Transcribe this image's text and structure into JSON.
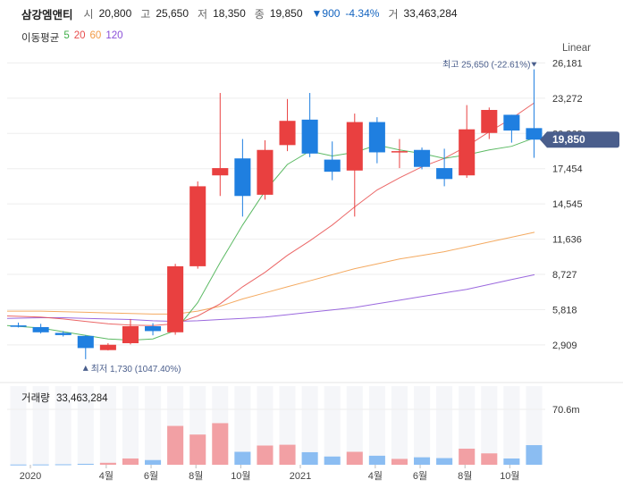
{
  "header": {
    "name": "삼강엠앤티",
    "open_label": "시",
    "open": "20,800",
    "high_label": "고",
    "high": "25,650",
    "low_label": "저",
    "low": "18,350",
    "close_label": "종",
    "close": "19,850",
    "change": "▼900",
    "change_pct": "-4.34%",
    "volume_label": "거",
    "volume": "33,463,284"
  },
  "moving_average": {
    "label": "이동평균",
    "periods": [
      {
        "period": "5",
        "color": "#3fae49"
      },
      {
        "period": "20",
        "color": "#e84c4c"
      },
      {
        "period": "60",
        "color": "#f29b45"
      },
      {
        "period": "120",
        "color": "#8a4fd8"
      }
    ]
  },
  "scale_mode": "Linear",
  "colors": {
    "up": "#e94040",
    "down": "#1f7fe0",
    "up_vol": "#f2a0a4",
    "down_vol": "#8bbdf2",
    "current_tag": "#4a5e8c"
  },
  "chart_data": {
    "type": "candlestick",
    "x_labels": [
      "2020",
      "4월",
      "6월",
      "8월",
      "10월",
      "2021",
      "4월",
      "6월",
      "8월",
      "10월"
    ],
    "y_ticks": [
      2909,
      5818,
      8727,
      11636,
      14545,
      17454,
      20363,
      23272,
      26181
    ],
    "y_tick_labels": [
      "2,909",
      "5,818",
      "8,727",
      "11,636",
      "14,545",
      "17,454",
      "20,363",
      "23,272",
      "26,181"
    ],
    "ylim": [
      1500,
      26800
    ],
    "current_price": "19,850",
    "max_annotation": "최고 25,650 (-22.61%)",
    "min_annotation": "최저 1,730 (1047.40%)",
    "candles": [
      {
        "o": 4520,
        "h": 4750,
        "l": 4350,
        "c": 4400
      },
      {
        "o": 4380,
        "h": 4650,
        "l": 3850,
        "c": 3950
      },
      {
        "o": 3900,
        "h": 4050,
        "l": 3600,
        "c": 3720
      },
      {
        "o": 3650,
        "h": 3720,
        "l": 1730,
        "c": 2650
      },
      {
        "o": 2480,
        "h": 3050,
        "l": 2450,
        "c": 2920
      },
      {
        "o": 3050,
        "h": 5050,
        "l": 2950,
        "c": 4450
      },
      {
        "o": 4450,
        "h": 4700,
        "l": 3700,
        "c": 4050
      },
      {
        "o": 3950,
        "h": 9600,
        "l": 3750,
        "c": 9400
      },
      {
        "o": 9400,
        "h": 16400,
        "l": 9200,
        "c": 16000
      },
      {
        "o": 16900,
        "h": 23700,
        "l": 15200,
        "c": 17500
      },
      {
        "o": 18300,
        "h": 19900,
        "l": 13500,
        "c": 15200
      },
      {
        "o": 15300,
        "h": 19800,
        "l": 14900,
        "c": 19000
      },
      {
        "o": 19400,
        "h": 23200,
        "l": 18900,
        "c": 21400
      },
      {
        "o": 21500,
        "h": 23700,
        "l": 18400,
        "c": 18700
      },
      {
        "o": 18200,
        "h": 19700,
        "l": 16500,
        "c": 17200
      },
      {
        "o": 17300,
        "h": 22000,
        "l": 13500,
        "c": 21300
      },
      {
        "o": 21300,
        "h": 21700,
        "l": 17900,
        "c": 18800
      },
      {
        "o": 18800,
        "h": 19900,
        "l": 17500,
        "c": 18900
      },
      {
        "o": 19000,
        "h": 19200,
        "l": 17400,
        "c": 17600
      },
      {
        "o": 17500,
        "h": 19100,
        "l": 16000,
        "c": 16600
      },
      {
        "o": 16900,
        "h": 22700,
        "l": 16700,
        "c": 20700
      },
      {
        "o": 20400,
        "h": 22500,
        "l": 19900,
        "c": 22300
      },
      {
        "o": 21900,
        "h": 21900,
        "l": 19600,
        "c": 20600
      },
      {
        "o": 20800,
        "h": 25650,
        "l": 18350,
        "c": 19850
      }
    ],
    "ma5": [
      4500,
      4300,
      4000,
      3700,
      3400,
      3300,
      3400,
      4100,
      6400,
      9700,
      12800,
      15600,
      17800,
      18900,
      18500,
      18800,
      19400,
      19000,
      18700,
      18300,
      18600,
      19000,
      19300,
      20000
    ],
    "ma20": [
      5300,
      5200,
      5050,
      4850,
      4650,
      4550,
      4500,
      4650,
      5300,
      6300,
      7700,
      8900,
      10300,
      11500,
      12800,
      14300,
      15700,
      16700,
      17600,
      18300,
      19300,
      20500,
      21600,
      22900
    ],
    "ma60": [
      5700,
      5700,
      5650,
      5600,
      5550,
      5500,
      5450,
      5450,
      5700,
      6100,
      6700,
      7200,
      7700,
      8200,
      8700,
      9200,
      9600,
      10000,
      10300,
      10600,
      11000,
      11400,
      11800,
      12200
    ],
    "ma120": [
      5100,
      5150,
      5150,
      5100,
      5050,
      5000,
      4900,
      4850,
      4900,
      5000,
      5100,
      5200,
      5400,
      5600,
      5800,
      6000,
      6300,
      6600,
      6900,
      7200,
      7500,
      7900,
      8300,
      8700
    ],
    "volume_label": "거래량",
    "volume_value": "33,463,284",
    "volume_tick": "70.6m",
    "volume_max": 70.6,
    "volumes": [
      0.3,
      0.4,
      0.6,
      1.2,
      2.5,
      8.0,
      6.0,
      49.5,
      38.5,
      53.0,
      16.5,
      24.5,
      25.5,
      16.0,
      10.5,
      16.5,
      11.5,
      7.5,
      9.5,
      8.5,
      20.5,
      14.5,
      8.0,
      25.0
    ]
  }
}
